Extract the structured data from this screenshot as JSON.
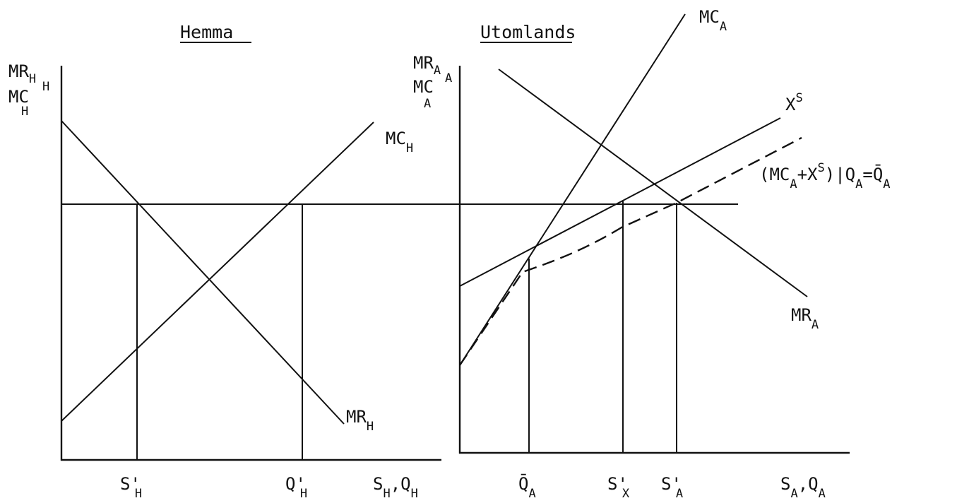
{
  "diagram": {
    "left_panel": {
      "title": "Hemma",
      "y_axis_label": {
        "line1": {
          "main": "MR",
          "sub": "H"
        },
        "line2": {
          "main": "MC",
          "sup": "H",
          "sub": "H"
        }
      },
      "x_axis_label": {
        "a": "S",
        "a_sub": "H",
        "sep": ",",
        "b": "Q",
        "b_sub": "H"
      },
      "curves": {
        "mr": {
          "main": "MR",
          "sub": "H"
        },
        "mc": {
          "main": "MC",
          "sub": "H"
        }
      },
      "ticks": {
        "s": {
          "main": "S",
          "prime": "'",
          "sub": "H"
        },
        "q": {
          "main": "Q",
          "prime": "'",
          "sub": "H"
        }
      }
    },
    "right_panel": {
      "title": "Utomlands",
      "y_axis_label": {
        "line1": {
          "main": "MR",
          "sub": "A"
        },
        "line2": {
          "main": "MC",
          "sup": "A",
          "sub": "A"
        }
      },
      "x_axis_label": {
        "a": "S",
        "a_sub": "A",
        "sep": ",",
        "b": "Q",
        "b_sub": "A"
      },
      "curves": {
        "mc": {
          "main": "MC",
          "sub": "A"
        },
        "mr": {
          "main": "MR",
          "sub": "A"
        },
        "xs": {
          "main": "X",
          "sup": "S"
        },
        "combined": {
          "open": "(MC",
          "sub1": "A",
          "plus": "+X",
          "sup": "S",
          "close": ")|Q",
          "sub2": "A",
          "eq": "=Q̄",
          "sub3": "A"
        }
      },
      "ticks": {
        "qbar": {
          "main": "Q̄",
          "sub": "A"
        },
        "sx": {
          "main": "S",
          "prime": "'",
          "sub": "X"
        },
        "sa": {
          "main": "S",
          "prime": "'",
          "sub": "A"
        }
      }
    }
  }
}
